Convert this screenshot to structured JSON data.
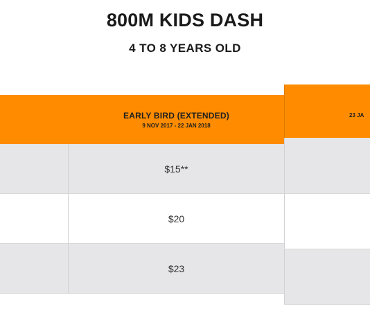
{
  "header": {
    "title": "800M KIDS DASH",
    "subtitle": "4 TO 8 YEARS OLD"
  },
  "pricing_table": {
    "column": {
      "label": "EARLY BIRD (EXTENDED)",
      "dates": "9 NOV 2017 - 22 JAN 2018"
    },
    "prices": [
      "$15**",
      "$20",
      "$23"
    ]
  },
  "next_table": {
    "column_label_partial": "23 JA"
  },
  "colors": {
    "header_orange": "#ff8c00",
    "row_gray": "#e6e6e8",
    "row_white": "#ffffff"
  }
}
